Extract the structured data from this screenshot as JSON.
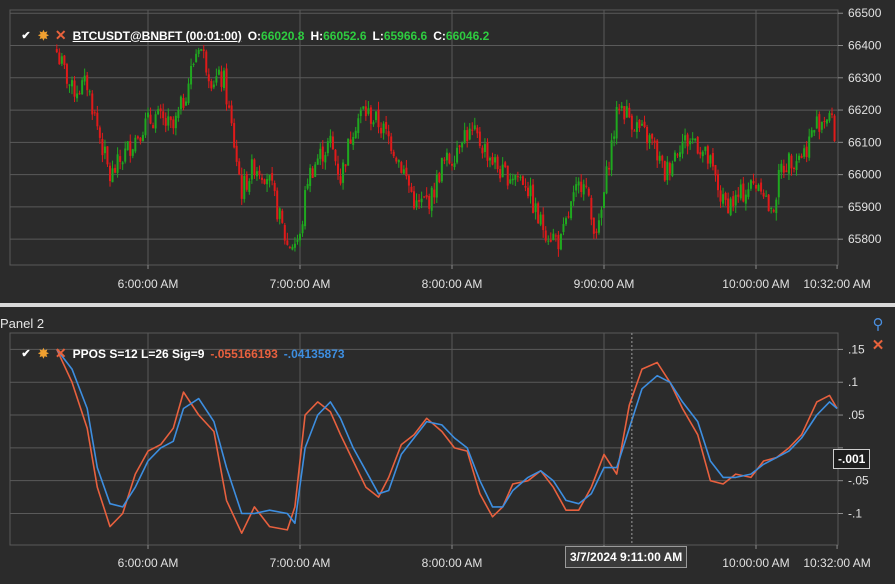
{
  "panel1": {
    "symbol": "BTCUSDT@BNBFT (00:01:00)",
    "o_label": "O:",
    "o_value": "66020.8",
    "h_label": "H:",
    "h_value": "66052.6",
    "l_label": "L:",
    "l_value": "65966.6",
    "c_label": "C:",
    "c_value": "66046.2"
  },
  "panel2": {
    "title": "Panel 2",
    "indicator": "PPOS S=12 L=26 Sig=9",
    "ppo_value": "-.055166193",
    "signal_value": "-.04135873",
    "current_readout": "-.001",
    "tooltip": "3/7/2024 9:11:00 AM"
  },
  "colors": {
    "background": "#2b2b2b",
    "grid": "#5a5a5a",
    "bull": "#1fa81f",
    "bear": "#e01a1a",
    "ppo": "#e8603e",
    "signal": "#3d8ee0",
    "ohlc_value": "#2ecc40"
  },
  "icons": [
    "checkbox-icon",
    "gear-icon",
    "close-icon",
    "pin-icon"
  ],
  "chart_data": [
    {
      "type": "candlestick",
      "title": "BTCUSDT@BNBFT (00:01:00)",
      "x_ticks": [
        "6:00:00 AM",
        "7:00:00 AM",
        "8:00:00 AM",
        "9:00:00 AM",
        "10:00:00 AM",
        "10:32:00 AM"
      ],
      "y_ticks": [
        65800,
        65900,
        66000,
        66100,
        66200,
        66300,
        66400,
        66500
      ],
      "ylim": [
        65720,
        66510
      ],
      "grid": true,
      "close_path": {
        "x": [
          "5:24",
          "5:30",
          "5:36",
          "5:40",
          "5:45",
          "5:52",
          "5:58",
          "6:03",
          "6:10",
          "6:14",
          "6:20",
          "6:25",
          "6:30",
          "6:37",
          "6:42",
          "6:47",
          "6:50",
          "6:55",
          "7:00",
          "7:03",
          "7:07",
          "7:12",
          "7:16",
          "7:21",
          "7:25",
          "7:31",
          "7:36",
          "7:41",
          "7:46",
          "7:52",
          "7:56",
          "8:00",
          "8:04",
          "8:09",
          "8:13",
          "8:20",
          "8:25",
          "8:29",
          "8:34",
          "8:38",
          "8:43",
          "8:47",
          "8:52",
          "8:55",
          "8:58",
          "9:02",
          "9:06",
          "9:11",
          "9:15",
          "9:19",
          "9:24",
          "9:30",
          "9:36",
          "9:42",
          "9:47",
          "9:52",
          "9:57",
          "10:02",
          "10:06",
          "10:10",
          "10:14",
          "10:19",
          "10:24",
          "10:29",
          "10:32"
        ],
        "close": [
          66380,
          66260,
          66280,
          66150,
          65990,
          66080,
          66150,
          66180,
          66140,
          66230,
          66410,
          66300,
          66290,
          65950,
          66030,
          66000,
          65920,
          65780,
          65800,
          65990,
          66050,
          66100,
          65990,
          66150,
          66200,
          66160,
          66100,
          66010,
          65900,
          65930,
          66030,
          66050,
          66130,
          66120,
          66080,
          66000,
          66000,
          65980,
          65860,
          65820,
          65790,
          65900,
          66000,
          65860,
          65830,
          66050,
          66220,
          66170,
          66130,
          66100,
          66000,
          66100,
          66110,
          66030,
          65910,
          65920,
          65960,
          65980,
          65870,
          66020,
          66050,
          66070,
          66160,
          66190,
          66090
        ]
      }
    },
    {
      "type": "line",
      "title": "PPOS S=12 L=26 Sig=9",
      "x_ticks": [
        "6:00:00 AM",
        "7:00:00 AM",
        "8:00:00 AM",
        "9:00:00 AM",
        "10:00:00 AM",
        "10:32:00 AM"
      ],
      "y_ticks": [
        0.15,
        0.1,
        0.05,
        0,
        -0.05,
        -0.1
      ],
      "y_tick_labels": [
        ".15",
        ".1",
        ".05",
        "-.001",
        "-.05",
        "-.1"
      ],
      "ylim": [
        -0.148,
        0.175
      ],
      "grid": true,
      "x": [
        "5:24",
        "5:30",
        "5:36",
        "5:40",
        "5:45",
        "5:50",
        "5:55",
        "6:00",
        "6:05",
        "6:10",
        "6:14",
        "6:20",
        "6:26",
        "6:31",
        "6:37",
        "6:42",
        "6:48",
        "6:55",
        "6:58",
        "7:02",
        "7:07",
        "7:12",
        "7:16",
        "7:21",
        "7:26",
        "7:31",
        "7:35",
        "7:40",
        "7:45",
        "7:50",
        "7:56",
        "8:01",
        "8:06",
        "8:11",
        "8:16",
        "8:20",
        "8:24",
        "8:30",
        "8:35",
        "8:40",
        "8:45",
        "8:50",
        "8:55",
        "9:00",
        "9:05",
        "9:10",
        "9:15",
        "9:21",
        "9:26",
        "9:31",
        "9:37",
        "9:42",
        "9:47",
        "9:52",
        "9:58",
        "10:03",
        "10:08",
        "10:13",
        "10:18",
        "10:24",
        "10:29",
        "10:32"
      ],
      "series": [
        {
          "name": "PPOS",
          "values": [
            0.15,
            0.1,
            0.03,
            -0.06,
            -0.12,
            -0.1,
            -0.04,
            -0.005,
            0.005,
            0.03,
            0.085,
            0.05,
            0.025,
            -0.08,
            -0.13,
            -0.09,
            -0.12,
            -0.125,
            -0.09,
            0.05,
            0.07,
            0.055,
            0.02,
            -0.02,
            -0.06,
            -0.075,
            -0.045,
            0.005,
            0.02,
            0.045,
            0.025,
            0.0,
            -0.005,
            -0.07,
            -0.105,
            -0.09,
            -0.055,
            -0.05,
            -0.035,
            -0.06,
            -0.095,
            -0.095,
            -0.06,
            -0.01,
            -0.04,
            0.065,
            0.12,
            0.13,
            0.1,
            0.06,
            0.02,
            -0.05,
            -0.055,
            -0.04,
            -0.045,
            -0.02,
            -0.015,
            0.0,
            0.02,
            0.07,
            0.08,
            0.06
          ]
        },
        {
          "name": "Signal",
          "values": [
            0.15,
            0.12,
            0.06,
            -0.03,
            -0.085,
            -0.09,
            -0.06,
            -0.02,
            0.0,
            0.01,
            0.06,
            0.075,
            0.04,
            -0.03,
            -0.1,
            -0.1,
            -0.095,
            -0.1,
            -0.115,
            0.0,
            0.05,
            0.07,
            0.045,
            0.0,
            -0.035,
            -0.07,
            -0.065,
            -0.01,
            0.015,
            0.04,
            0.035,
            0.015,
            0.0,
            -0.05,
            -0.09,
            -0.09,
            -0.065,
            -0.045,
            -0.035,
            -0.05,
            -0.08,
            -0.085,
            -0.07,
            -0.03,
            -0.03,
            0.03,
            0.09,
            0.11,
            0.1,
            0.07,
            0.04,
            -0.02,
            -0.045,
            -0.045,
            -0.04,
            -0.025,
            -0.015,
            -0.005,
            0.015,
            0.05,
            0.07,
            0.06
          ]
        }
      ]
    }
  ]
}
